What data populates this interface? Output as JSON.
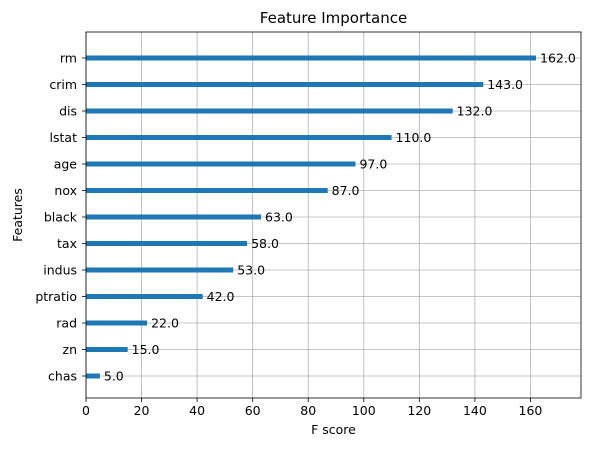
{
  "chart_data": {
    "type": "bar",
    "orientation": "horizontal",
    "title": "Feature Importance",
    "xlabel": "F score",
    "ylabel": "Features",
    "categories": [
      "chas",
      "zn",
      "rad",
      "ptratio",
      "indus",
      "tax",
      "black",
      "nox",
      "age",
      "lstat",
      "dis",
      "crim",
      "rm"
    ],
    "values": [
      5.0,
      15.0,
      22.0,
      42.0,
      53.0,
      58.0,
      63.0,
      87.0,
      97.0,
      110.0,
      132.0,
      143.0,
      162.0
    ],
    "value_labels": [
      "5.0",
      "15.0",
      "22.0",
      "42.0",
      "53.0",
      "58.0",
      "63.0",
      "87.0",
      "97.0",
      "110.0",
      "132.0",
      "143.0",
      "162.0"
    ],
    "xlim": [
      0,
      178.2
    ],
    "xticks": [
      0,
      20,
      40,
      60,
      80,
      100,
      120,
      140,
      160
    ],
    "grid": true,
    "bar_color": "#1f77b4",
    "grid_color": "#b0b0b0"
  }
}
